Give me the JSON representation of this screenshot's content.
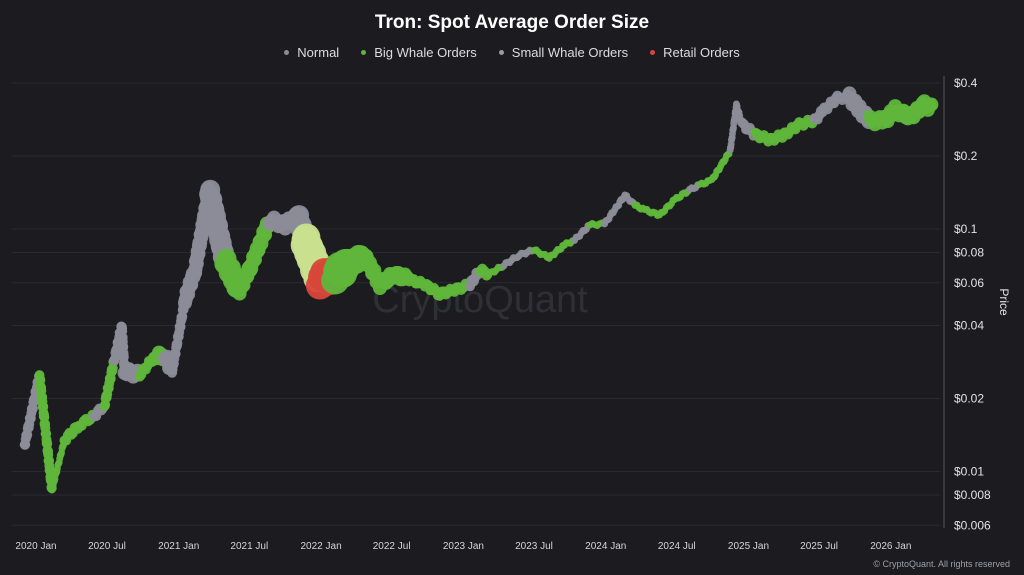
{
  "chart_data": {
    "type": "scatter",
    "title": "Tron: Spot Average Order Size",
    "ylabel": "Price",
    "xlabel": "",
    "yscale": "log",
    "ylim": [
      0.006,
      0.4
    ],
    "y_ticks": [
      "$0.4",
      "$0.2",
      "$0.1",
      "$0.08",
      "$0.06",
      "$0.04",
      "$0.02",
      "$0.01",
      "$0.008",
      "$0.006"
    ],
    "y_tick_values": [
      0.4,
      0.2,
      0.1,
      0.08,
      0.06,
      0.04,
      0.02,
      0.01,
      0.008,
      0.006
    ],
    "x_ticks": [
      "2020 Jan",
      "2020 Jul",
      "2021 Jan",
      "2021 Jul",
      "2022 Jan",
      "2022 Jul",
      "2023 Jan",
      "2023 Jul",
      "2024 Jan",
      "2024 Jul",
      "2025 Jan",
      "2025 Jul",
      "2026 Jan"
    ],
    "x_tick_dates": [
      "2020-01-01",
      "2020-07-01",
      "2021-01-01",
      "2021-07-01",
      "2022-01-01",
      "2022-07-01",
      "2023-01-01",
      "2023-07-01",
      "2024-01-01",
      "2024-07-01",
      "2025-01-01",
      "2025-07-01",
      "2026-01-01"
    ],
    "grid": "horizontal",
    "legend_placement": "top-center",
    "legend": [
      {
        "key": "normal",
        "label": "Normal",
        "color": "#8c8c98"
      },
      {
        "key": "big",
        "label": "Big Whale Orders",
        "color": "#5fb63a"
      },
      {
        "key": "small",
        "label": "Small Whale Orders",
        "color": "#9a9aa2"
      },
      {
        "key": "retail",
        "label": "Retail Orders",
        "color": "#d8473a"
      }
    ],
    "extra_colors": {
      "light": "#c9e08e"
    },
    "point_fields": [
      "date",
      "price",
      "category",
      "relative_order_size"
    ],
    "points": [
      [
        "2019-12-03",
        0.0129,
        "normal",
        2
      ],
      [
        "2020-01-10",
        0.025,
        "big",
        2
      ],
      [
        "2020-02-11",
        0.0084,
        "big",
        1
      ],
      [
        "2020-03-14",
        0.0135,
        "big",
        2
      ],
      [
        "2020-04-22",
        0.0156,
        "big",
        2
      ],
      [
        "2020-05-30",
        0.017,
        "normal",
        2
      ],
      [
        "2020-06-25",
        0.0188,
        "big",
        2
      ],
      [
        "2020-07-20",
        0.029,
        "normal",
        2
      ],
      [
        "2020-08-08",
        0.04,
        "normal",
        2
      ],
      [
        "2020-08-15",
        0.026,
        "normal",
        3
      ],
      [
        "2020-09-23",
        0.025,
        "big",
        2
      ],
      [
        "2020-11-01",
        0.03,
        "big",
        3
      ],
      [
        "2020-11-27",
        0.03,
        "normal",
        3
      ],
      [
        "2020-12-15",
        0.026,
        "normal",
        2
      ],
      [
        "2021-01-17",
        0.051,
        "normal",
        3
      ],
      [
        "2021-02-12",
        0.068,
        "normal",
        3
      ],
      [
        "2021-03-20",
        0.145,
        "normal",
        4
      ],
      [
        "2021-04-28",
        0.075,
        "big",
        4
      ],
      [
        "2021-06-06",
        0.056,
        "big",
        3
      ],
      [
        "2021-07-06",
        0.071,
        "big",
        3
      ],
      [
        "2021-08-01",
        0.09,
        "big",
        3
      ],
      [
        "2021-08-22",
        0.109,
        "normal",
        3
      ],
      [
        "2021-10-01",
        0.104,
        "normal",
        3
      ],
      [
        "2021-11-02",
        0.114,
        "normal",
        4
      ],
      [
        "2021-11-20",
        0.091,
        "light",
        5
      ],
      [
        "2021-12-29",
        0.062,
        "retail",
        5
      ],
      [
        "2022-02-06",
        0.065,
        "big",
        5
      ],
      [
        "2022-03-14",
        0.071,
        "big",
        4
      ],
      [
        "2022-04-22",
        0.078,
        "big",
        3
      ],
      [
        "2022-06-01",
        0.059,
        "big",
        3
      ],
      [
        "2022-07-07",
        0.065,
        "big",
        3
      ],
      [
        "2022-08-15",
        0.062,
        "big",
        2
      ],
      [
        "2022-09-24",
        0.059,
        "big",
        2
      ],
      [
        "2022-11-01",
        0.054,
        "big",
        2
      ],
      [
        "2022-12-09",
        0.056,
        "big",
        2
      ],
      [
        "2023-01-18",
        0.059,
        "normal",
        2
      ],
      [
        "2023-02-13",
        0.068,
        "big",
        2
      ],
      [
        "2023-03-07",
        0.065,
        "big",
        1
      ],
      [
        "2023-04-15",
        0.071,
        "normal",
        1
      ],
      [
        "2023-05-24",
        0.078,
        "normal",
        1
      ],
      [
        "2023-07-01",
        0.082,
        "big",
        1
      ],
      [
        "2023-08-09",
        0.076,
        "big",
        1
      ],
      [
        "2023-09-17",
        0.086,
        "big",
        1
      ],
      [
        "2023-10-13",
        0.09,
        "normal",
        1
      ],
      [
        "2023-11-21",
        0.104,
        "big",
        1
      ],
      [
        "2023-12-29",
        0.105,
        "normal",
        1
      ],
      [
        "2024-01-24",
        0.12,
        "normal",
        1
      ],
      [
        "2024-02-19",
        0.138,
        "normal",
        1
      ],
      [
        "2024-03-16",
        0.125,
        "big",
        1
      ],
      [
        "2024-04-10",
        0.12,
        "big",
        1
      ],
      [
        "2024-05-18",
        0.114,
        "big",
        1
      ],
      [
        "2024-06-26",
        0.132,
        "big",
        1
      ],
      [
        "2024-08-03",
        0.145,
        "normal",
        1
      ],
      [
        "2024-08-29",
        0.152,
        "big",
        1
      ],
      [
        "2024-09-29",
        0.159,
        "big",
        1
      ],
      [
        "2024-10-24",
        0.184,
        "big",
        1
      ],
      [
        "2024-11-15",
        0.21,
        "normal",
        1
      ],
      [
        "2024-12-01",
        0.325,
        "normal",
        1
      ],
      [
        "2024-12-16",
        0.27,
        "normal",
        2
      ],
      [
        "2025-01-19",
        0.245,
        "big",
        2
      ],
      [
        "2025-02-26",
        0.233,
        "big",
        2
      ],
      [
        "2025-04-03",
        0.245,
        "big",
        2
      ],
      [
        "2025-05-11",
        0.27,
        "big",
        2
      ],
      [
        "2025-06-19",
        0.28,
        "normal",
        2
      ],
      [
        "2025-07-14",
        0.31,
        "normal",
        2
      ],
      [
        "2025-08-17",
        0.347,
        "normal",
        2
      ],
      [
        "2025-09-17",
        0.35,
        "normal",
        3
      ],
      [
        "2025-10-13",
        0.31,
        "normal",
        3
      ],
      [
        "2025-11-09",
        0.28,
        "big",
        3
      ],
      [
        "2025-12-16",
        0.28,
        "big",
        3
      ],
      [
        "2026-01-12",
        0.31,
        "big",
        3
      ],
      [
        "2026-02-19",
        0.29,
        "big",
        3
      ],
      [
        "2026-03-28",
        0.325,
        "big",
        3
      ],
      [
        "2026-04-15",
        0.315,
        "big",
        3
      ]
    ]
  },
  "watermark": "CryptoQuant",
  "credit": "© CryptoQuant. All rights reserved"
}
